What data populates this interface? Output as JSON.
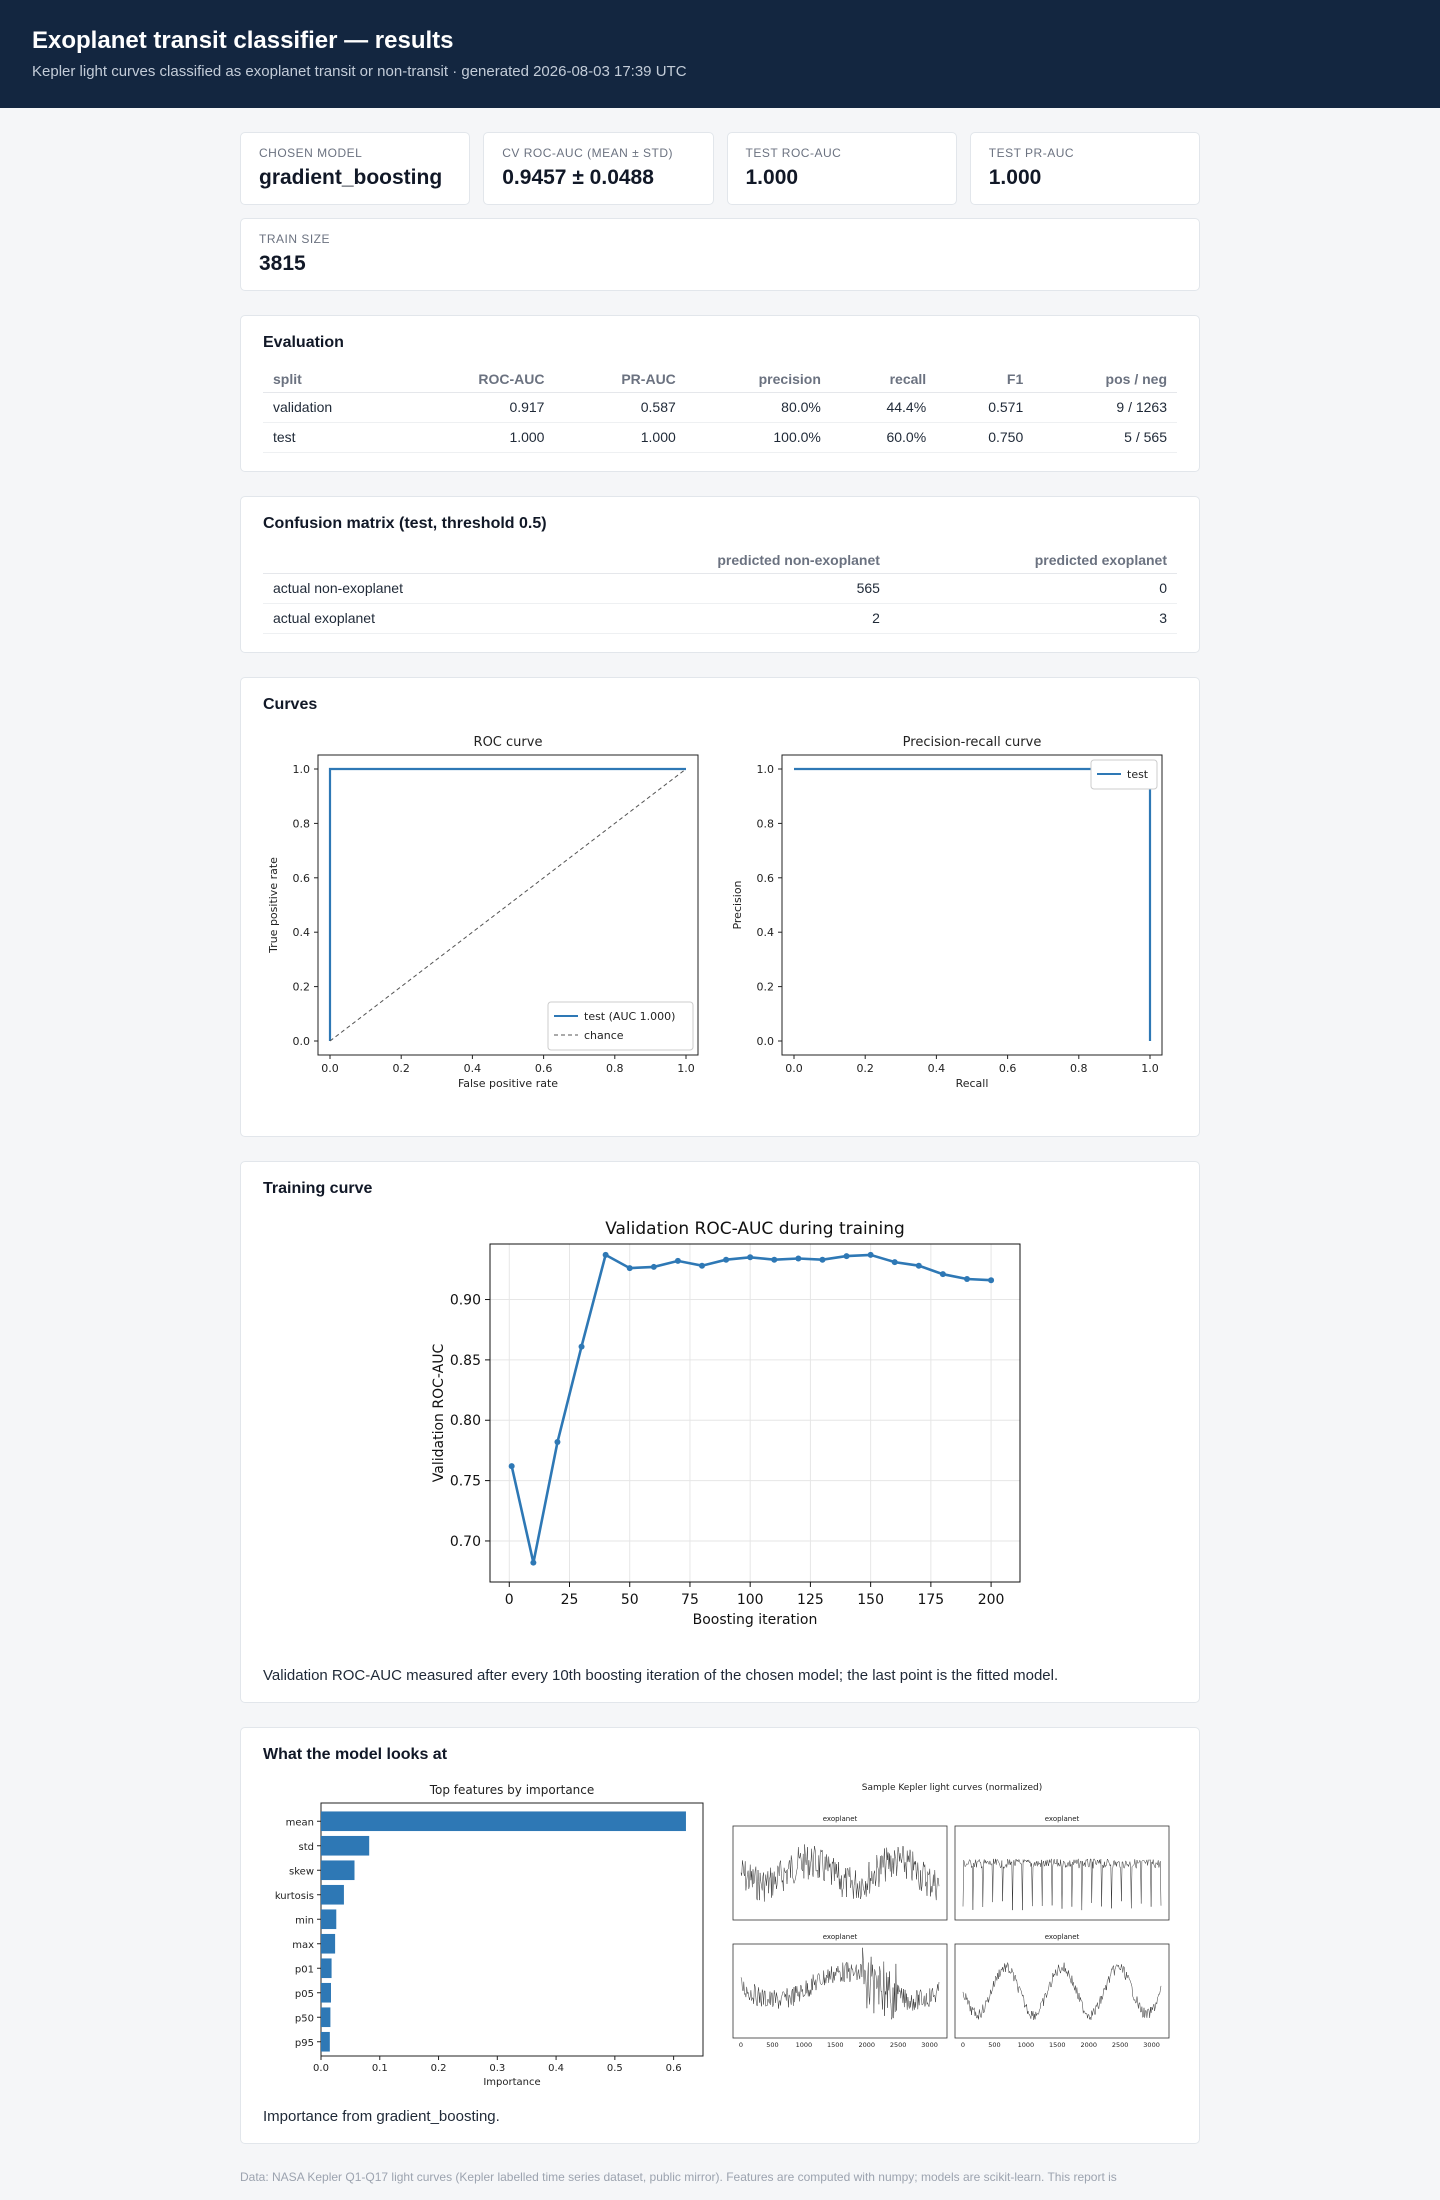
{
  "header": {
    "title": "Exoplanet transit classifier — results",
    "subtitle": "Kepler light curves classified as exoplanet transit or non-transit · generated 2026-08-03 17:39 UTC"
  },
  "stats": [
    {
      "label": "CHOSEN MODEL",
      "value": "gradient_boosting"
    },
    {
      "label": "CV ROC-AUC (MEAN ± STD)",
      "value": "0.9457 ± 0.0488"
    },
    {
      "label": "TEST ROC-AUC",
      "value": "1.000"
    },
    {
      "label": "TEST PR-AUC",
      "value": "1.000"
    },
    {
      "label": "TRAIN SIZE",
      "value": "3815"
    }
  ],
  "evaluation": {
    "title": "Evaluation",
    "headers": [
      "split",
      "ROC-AUC",
      "PR-AUC",
      "precision",
      "recall",
      "F1",
      "pos / neg"
    ],
    "rows": [
      [
        "validation",
        "0.917",
        "0.587",
        "80.0%",
        "44.4%",
        "0.571",
        "9 / 1263"
      ],
      [
        "test",
        "1.000",
        "1.000",
        "100.0%",
        "60.0%",
        "0.750",
        "5 / 565"
      ]
    ]
  },
  "confusion": {
    "title": "Confusion matrix (test, threshold 0.5)",
    "headers": [
      "",
      "predicted non-exoplanet",
      "predicted exoplanet"
    ],
    "rows": [
      [
        "actual non-exoplanet",
        "565",
        "0"
      ],
      [
        "actual exoplanet",
        "2",
        "3"
      ]
    ]
  },
  "curves": {
    "title": "Curves"
  },
  "training": {
    "title": "Training curve",
    "caption": "Validation ROC-AUC measured after every 10th boosting iteration of the chosen model; the last point is the fitted model."
  },
  "features": {
    "title": "What the model looks at",
    "caption": "Importance from gradient_boosting.",
    "light_curves_title": "Sample Kepler light curves (normalized)",
    "panel_labels": [
      "exoplanet",
      "exoplanet",
      "exoplanet",
      "exoplanet"
    ],
    "panel_ticks": [
      "0",
      "500",
      "1000",
      "1500",
      "2000",
      "2500",
      "3000"
    ]
  },
  "footer": "Data: NASA Kepler Q1-Q17 light curves (Kepler labelled time series dataset, public mirror). Features are computed with numpy; models are scikit-learn. This report is",
  "colors": {
    "accent": "#2e78b5",
    "header_bg": "#132640"
  },
  "chart_data": [
    {
      "type": "line",
      "title": "ROC curve",
      "xlabel": "False positive rate",
      "ylabel": "True positive rate",
      "xlim": [
        0,
        1
      ],
      "ylim": [
        0,
        1
      ],
      "ticks": [
        "0.0",
        "0.2",
        "0.4",
        "0.6",
        "0.8",
        "1.0"
      ],
      "legend": "bottom-right",
      "series": [
        {
          "name": "test (AUC 1.000)",
          "x": [
            0,
            0,
            1
          ],
          "y": [
            0,
            1,
            1
          ]
        },
        {
          "name": "chance",
          "x": [
            0,
            1
          ],
          "y": [
            0,
            1
          ]
        }
      ]
    },
    {
      "type": "line",
      "title": "Precision-recall curve",
      "xlabel": "Recall",
      "ylabel": "Precision",
      "xlim": [
        0,
        1
      ],
      "ylim": [
        0,
        1
      ],
      "ticks": [
        "0.0",
        "0.2",
        "0.4",
        "0.6",
        "0.8",
        "1.0"
      ],
      "legend": "top-right",
      "series": [
        {
          "name": "test",
          "x": [
            0,
            1,
            1
          ],
          "y": [
            1,
            1,
            0
          ]
        }
      ]
    },
    {
      "type": "line",
      "title": "Validation ROC-AUC during training",
      "xlabel": "Boosting iteration",
      "ylabel": "Validation ROC-AUC",
      "xlim": [
        -8,
        212
      ],
      "ylim": [
        0.666,
        0.946
      ],
      "xticks": [
        0,
        25,
        50,
        75,
        100,
        125,
        150,
        175,
        200
      ],
      "xtick_labels": [
        "0",
        "25",
        "50",
        "75",
        "100",
        "125",
        "150",
        "175",
        "200"
      ],
      "yticks": [
        0.7,
        0.75,
        0.8,
        0.85,
        0.9
      ],
      "ytick_labels": [
        "0.70",
        "0.75",
        "0.80",
        "0.85",
        "0.90"
      ],
      "grid": true,
      "x": [
        1,
        10,
        20,
        30,
        40,
        50,
        60,
        70,
        80,
        90,
        100,
        110,
        120,
        130,
        140,
        150,
        160,
        170,
        180,
        190,
        200
      ],
      "y": [
        0.762,
        0.682,
        0.782,
        0.861,
        0.937,
        0.926,
        0.927,
        0.932,
        0.928,
        0.933,
        0.935,
        0.933,
        0.934,
        0.933,
        0.936,
        0.937,
        0.931,
        0.928,
        0.921,
        0.917,
        0.916
      ]
    },
    {
      "type": "bar",
      "orientation": "horizontal",
      "title": "Top features by importance",
      "xlabel": "Importance",
      "xlim": [
        0,
        0.65
      ],
      "xticks": [
        "0.0",
        "0.1",
        "0.2",
        "0.3",
        "0.4",
        "0.5",
        "0.6"
      ],
      "categories": [
        "mean",
        "std",
        "skew",
        "kurtosis",
        "min",
        "max",
        "p01",
        "p05",
        "p50",
        "p95"
      ],
      "values": [
        0.621,
        0.082,
        0.057,
        0.039,
        0.026,
        0.024,
        0.018,
        0.017,
        0.016,
        0.015
      ]
    }
  ]
}
